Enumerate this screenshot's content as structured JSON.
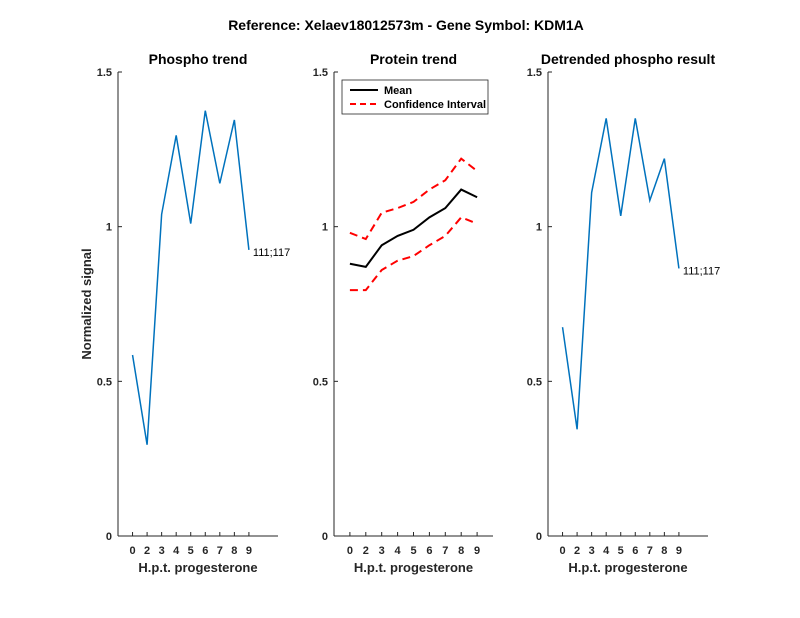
{
  "figure": {
    "title": "Reference:  Xelaev18012573m - Gene Symbol:  KDM1A"
  },
  "chart_data": [
    {
      "type": "line",
      "title": "Phospho trend",
      "xlabel": "H.p.t. progesterone",
      "ylabel": "Normalized signal",
      "x": [
        0,
        1,
        2,
        3,
        4,
        5,
        6,
        7,
        8,
        9
      ],
      "xlim": [
        -1,
        10
      ],
      "ylim": [
        0,
        1.5
      ],
      "xticks": [
        "0",
        "2",
        "3",
        "4",
        "5",
        "6",
        "7",
        "8",
        "9"
      ],
      "xtick_values": [
        0,
        1,
        2,
        3,
        4,
        5,
        6,
        7,
        8
      ],
      "yticks": [
        "0",
        "0.5",
        "1",
        "1.5"
      ],
      "ytick_values": [
        0,
        0.5,
        1,
        1.5
      ],
      "series": [
        {
          "values": [
            0.585,
            0.295,
            1.04,
            1.295,
            1.01,
            1.375,
            1.14,
            1.345,
            0.925
          ],
          "color": "#0072BD",
          "x": [
            0,
            1,
            2,
            3,
            4,
            5,
            6,
            7,
            8
          ]
        }
      ],
      "annotation": {
        "text": "111;117",
        "x": 8,
        "y": 0.925
      }
    },
    {
      "type": "line",
      "title": "Protein trend",
      "xlabel": "H.p.t. progesterone",
      "ylabel": "",
      "xlim": [
        -1,
        9
      ],
      "ylim": [
        0,
        1.5
      ],
      "xticks": [
        "0",
        "2",
        "3",
        "4",
        "5",
        "6",
        "7",
        "8",
        "9"
      ],
      "xtick_values": [
        0,
        1,
        2,
        3,
        4,
        5,
        6,
        7,
        8
      ],
      "yticks": [
        "0",
        "0.5",
        "1",
        "1.5"
      ],
      "ytick_values": [
        0,
        0.5,
        1,
        1.5
      ],
      "series": [
        {
          "name": "Mean",
          "values": [
            0.88,
            0.87,
            0.94,
            0.97,
            0.99,
            1.03,
            1.06,
            1.12,
            1.095
          ],
          "color": "#000000",
          "dash": "solid"
        },
        {
          "name": "Confidence Interval",
          "values": [
            0.98,
            0.96,
            1.045,
            1.06,
            1.08,
            1.12,
            1.15,
            1.22,
            1.18
          ],
          "color": "#ff0000",
          "dash": "dashed"
        },
        {
          "name": "",
          "values": [
            0.795,
            0.795,
            0.86,
            0.89,
            0.905,
            0.94,
            0.97,
            1.03,
            1.01
          ],
          "color": "#ff0000",
          "dash": "dashed"
        }
      ],
      "legend": {
        "placement": "top-left",
        "entries": [
          "Mean",
          "Confidence Interval"
        ]
      }
    },
    {
      "type": "line",
      "title": "Detrended phospho result",
      "xlabel": "H.p.t. progesterone",
      "ylabel": "",
      "xlim": [
        -1,
        10
      ],
      "ylim": [
        0,
        1.5
      ],
      "xticks": [
        "0",
        "2",
        "3",
        "4",
        "5",
        "6",
        "7",
        "8",
        "9"
      ],
      "xtick_values": [
        0,
        1,
        2,
        3,
        4,
        5,
        6,
        7,
        8
      ],
      "yticks": [
        "0",
        "0.5",
        "1",
        "1.5"
      ],
      "ytick_values": [
        0,
        0.5,
        1,
        1.5
      ],
      "series": [
        {
          "values": [
            0.675,
            0.345,
            1.11,
            1.35,
            1.035,
            1.35,
            1.085,
            1.22,
            0.865
          ],
          "color": "#0072BD"
        }
      ],
      "annotation": {
        "text": "111;117",
        "x": 8,
        "y": 0.865
      }
    }
  ]
}
